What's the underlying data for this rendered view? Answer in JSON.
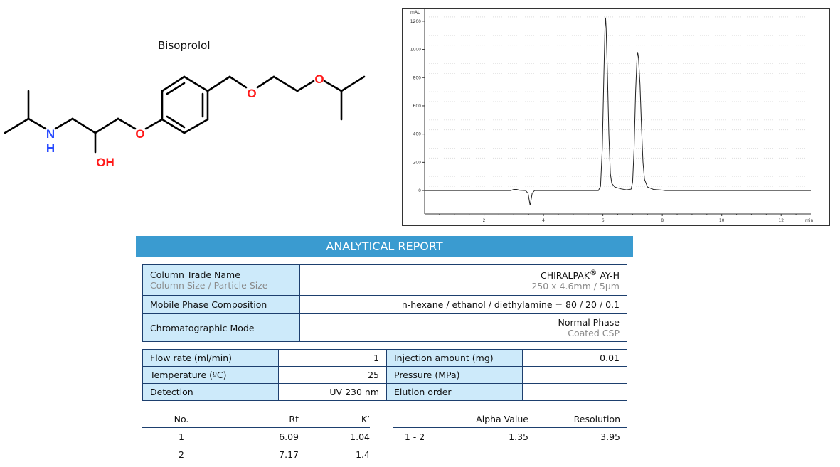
{
  "compound_name": "Bisoprolol",
  "structure": {
    "atom_labels": {
      "n": "N",
      "h": "H",
      "oh": "OH",
      "o": "O"
    },
    "colors": {
      "nitrogen": "#2a4cff",
      "oxygen": "#ff1a1a",
      "bond": "#000000"
    }
  },
  "chart_data": {
    "type": "line",
    "title": "",
    "xlabel": "min",
    "ylabel": "mAU",
    "xlim": [
      0,
      13
    ],
    "ylim": [
      -166,
      1285
    ],
    "xticks": [
      2,
      4,
      6,
      8,
      10,
      12
    ],
    "yticks": [
      0,
      200,
      400,
      600,
      800,
      1000,
      1200
    ],
    "grid": true,
    "line_color": "#222222",
    "series": [
      {
        "x": [
          0,
          2.9,
          3.0,
          3.1,
          3.2,
          3.4,
          3.48,
          3.55,
          3.62,
          3.7,
          5.85,
          5.92,
          5.98,
          6.03,
          6.07,
          6.09,
          6.11,
          6.15,
          6.2,
          6.25,
          6.3,
          6.4,
          6.6,
          6.8,
          6.95,
          7.0,
          7.05,
          7.1,
          7.15,
          7.17,
          7.2,
          7.25,
          7.3,
          7.35,
          7.4,
          7.5,
          7.7,
          8.0,
          8.1,
          13
        ],
        "y": [
          0,
          0,
          8,
          8,
          2,
          0,
          -20,
          -105,
          -20,
          0,
          0,
          30,
          300,
          800,
          1150,
          1225,
          1150,
          850,
          400,
          120,
          50,
          25,
          12,
          5,
          10,
          60,
          300,
          700,
          950,
          980,
          940,
          750,
          450,
          200,
          80,
          25,
          8,
          3,
          0,
          0
        ]
      }
    ]
  },
  "report": {
    "header": "ANALYTICAL REPORT",
    "column": {
      "label": "Column Trade Name",
      "sublabel": "Column Size / Particle Size",
      "value": "CHIRALPAK",
      "value_sup": "®",
      "value_suffix": " AY-H",
      "subvalue": "250 x 4.6mm / 5µm"
    },
    "mobile_phase": {
      "label": "Mobile Phase Composition",
      "value": "n-hexane / ethanol / diethylamine = 80 / 20 / 0.1"
    },
    "mode": {
      "label": "Chromatographic Mode",
      "value": "Normal Phase",
      "subvalue": "Coated CSP"
    },
    "conditions": [
      {
        "label": "Flow rate (ml/min)",
        "value": "1",
        "label2": "Injection amount (mg)",
        "value2": "0.01"
      },
      {
        "label": "Temperature (ºC)",
        "value": "25",
        "label2": "Pressure (MPa)",
        "value2": ""
      },
      {
        "label": "Detection",
        "value": "UV 230 nm",
        "label2": "Elution order",
        "value2": ""
      }
    ],
    "peaks": {
      "headers": [
        "No.",
        "Rt",
        "K’"
      ],
      "rows": [
        [
          "1",
          "6.09",
          "1.04"
        ],
        [
          "2",
          "7.17",
          "1.4"
        ]
      ]
    },
    "separation": {
      "headers": [
        "",
        "Alpha Value",
        "Resolution"
      ],
      "rows": [
        [
          "1 - 2",
          "1.35",
          "3.95"
        ]
      ]
    },
    "colors": {
      "header_bar": "#3a9bd0",
      "label_cell": "#cdeafa",
      "border": "#1d3f6e"
    }
  }
}
